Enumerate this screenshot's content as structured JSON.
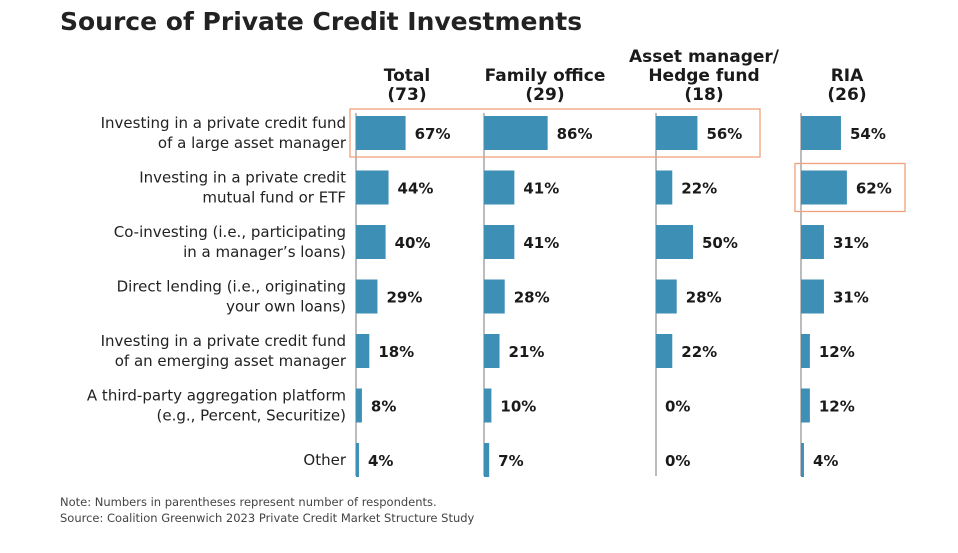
{
  "title": "Source of Private Credit Investments",
  "chart_data": {
    "type": "bar",
    "orientation": "horizontal",
    "title": "Source of Private Credit Investments",
    "unit": "%",
    "bar_color": "#3d8fb6",
    "highlight_color": "#f0a07a",
    "categories": [
      [
        "Investing in a private credit fund",
        "of a large asset manager"
      ],
      [
        "Investing in a private credit",
        "mutual fund or ETF"
      ],
      [
        "Co-investing (i.e., participating",
        "in a manager’s loans)"
      ],
      [
        "Direct lending (i.e., originating",
        "your own loans)"
      ],
      [
        "Investing in a private credit fund",
        "of an emerging asset manager"
      ],
      [
        "A third-party aggregation platform",
        "(e.g., Percent, Securitize)"
      ],
      [
        "Other"
      ]
    ],
    "series": [
      {
        "name": [
          "Total",
          "(73)"
        ],
        "values": [
          67,
          44,
          40,
          29,
          18,
          8,
          4
        ]
      },
      {
        "name": [
          "Family office",
          "(29)"
        ],
        "values": [
          86,
          41,
          41,
          28,
          21,
          10,
          7
        ]
      },
      {
        "name": [
          "Asset manager/",
          "Hedge fund",
          "(18)"
        ],
        "values": [
          56,
          22,
          50,
          28,
          22,
          0,
          0
        ]
      },
      {
        "name": [
          "RIA",
          "(26)"
        ],
        "values": [
          54,
          62,
          31,
          31,
          12,
          12,
          4
        ]
      }
    ],
    "highlights": [
      {
        "category_index": 0,
        "series": [
          0,
          1,
          2
        ]
      },
      {
        "category_index": 1,
        "series": [
          3
        ]
      }
    ],
    "grid": false,
    "legend": "none"
  },
  "notes": [
    "Note: Numbers in parentheses represent number of respondents.",
    "Source: Coalition Greenwich 2023 Private Credit Market Structure Study"
  ]
}
